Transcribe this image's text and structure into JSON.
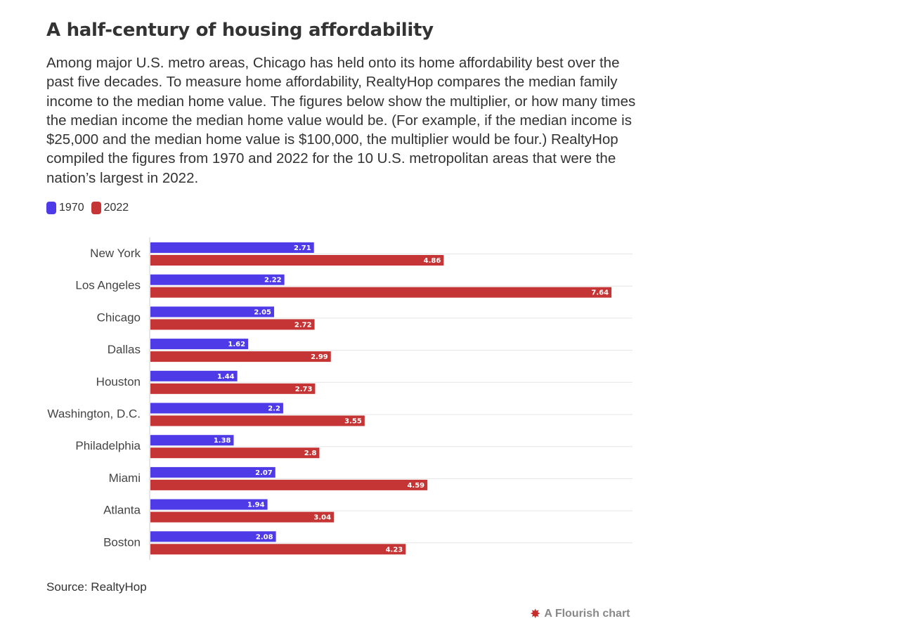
{
  "header": {
    "title": "A half-century of housing affordability",
    "subtitle": "Among major U.S. metro areas, Chicago has held onto its home affordability best over the past five decades. To measure home affordability, RealtyHop compares the median family income to the median home value. The figures below show the multiplier, or how many times the median income the median home value would be. (For example, if the median income is $25,000 and the median home value is $100,000, the multiplier would be four.) RealtyHop compiled the figures from 1970 and 2022 for the 10 U.S. metropolitan areas that were the nation’s largest in 2022."
  },
  "legend": [
    {
      "label": "1970",
      "color": "#4f3ae8"
    },
    {
      "label": "2022",
      "color": "#c63535"
    }
  ],
  "chart_data": {
    "type": "bar",
    "orientation": "horizontal",
    "categories": [
      "New York",
      "Los Angeles",
      "Chicago",
      "Dallas",
      "Houston",
      "Washington, D.C.",
      "Philadelphia",
      "Miami",
      "Atlanta",
      "Boston"
    ],
    "series": [
      {
        "name": "1970",
        "color": "#4f3ae8",
        "values": [
          2.71,
          2.22,
          2.05,
          1.62,
          1.44,
          2.2,
          1.38,
          2.07,
          1.94,
          2.08
        ]
      },
      {
        "name": "2022",
        "color": "#c63535",
        "values": [
          4.86,
          7.64,
          2.72,
          2.99,
          2.73,
          3.55,
          2.8,
          4.59,
          3.04,
          4.23
        ]
      }
    ],
    "xlim": [
      0,
      8
    ],
    "grid": true,
    "data_labels": true,
    "legend_position": "top-left"
  },
  "footer": {
    "source": "Source: RealtyHop",
    "credit": "A Flourish chart"
  }
}
